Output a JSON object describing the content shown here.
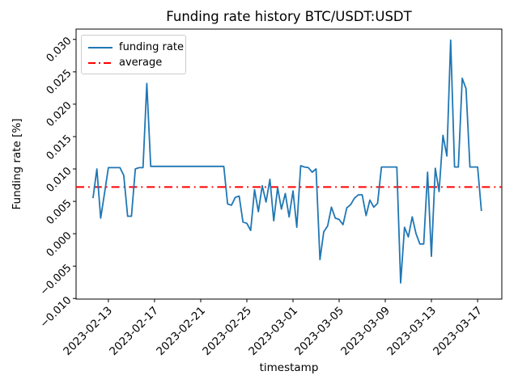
{
  "chart_data": {
    "type": "line",
    "title": "Funding rate history BTC/USDT:USDT",
    "xlabel": "timestamp",
    "ylabel": "Funding rate [%]",
    "legend_position": "upper left",
    "grid": false,
    "colors": {
      "funding_rate_line": "#1f77b4",
      "average_line": "#ff0000"
    },
    "average_value": 0.0072,
    "x_ticks": [
      "2023-02-13",
      "2023-02-17",
      "2023-02-21",
      "2023-02-25",
      "2023-03-01",
      "2023-03-05",
      "2023-03-09",
      "2023-03-13",
      "2023-03-17"
    ],
    "y_tick_values": [
      0.03,
      0.025,
      0.02,
      0.015,
      0.01,
      0.005,
      0.0,
      -0.005,
      -0.01
    ],
    "y_tick_labels": [
      "0.030",
      "0.025",
      "0.020",
      "0.015",
      "0.010",
      "0.005",
      "0.000",
      "−0.005",
      "−0.010"
    ],
    "ylim": [
      -0.0101,
      0.0316
    ],
    "xlim_days_from_2023_02_13": [
      -2.8,
      34.1
    ],
    "legend": [
      {
        "label": "funding rate",
        "color": "#1f77b4",
        "style": "solid"
      },
      {
        "label": "average",
        "color": "#ff0000",
        "style": "dashdot"
      }
    ],
    "timestamps": [
      "2023-02-11T16:00",
      "2023-02-12T00:00",
      "2023-02-12T08:00",
      "2023-02-12T16:00",
      "2023-02-13T00:00",
      "2023-02-13T08:00",
      "2023-02-13T16:00",
      "2023-02-14T00:00",
      "2023-02-14T08:00",
      "2023-02-14T16:00",
      "2023-02-15T00:00",
      "2023-02-15T08:00",
      "2023-02-15T16:00",
      "2023-02-16T00:00",
      "2023-02-16T08:00",
      "2023-02-16T16:00",
      "2023-02-17T00:00",
      "2023-02-17T08:00",
      "2023-02-17T16:00",
      "2023-02-18T00:00",
      "2023-02-18T08:00",
      "2023-02-18T16:00",
      "2023-02-19T00:00",
      "2023-02-19T08:00",
      "2023-02-19T16:00",
      "2023-02-20T00:00",
      "2023-02-20T08:00",
      "2023-02-20T16:00",
      "2023-02-21T00:00",
      "2023-02-21T08:00",
      "2023-02-21T16:00",
      "2023-02-22T00:00",
      "2023-02-22T08:00",
      "2023-02-22T16:00",
      "2023-02-23T00:00",
      "2023-02-23T08:00",
      "2023-02-23T16:00",
      "2023-02-24T00:00",
      "2023-02-24T08:00",
      "2023-02-24T16:00",
      "2023-02-25T00:00",
      "2023-02-25T08:00",
      "2023-02-25T16:00",
      "2023-02-26T00:00",
      "2023-02-26T08:00",
      "2023-02-26T16:00",
      "2023-02-27T00:00",
      "2023-02-27T08:00",
      "2023-02-27T16:00",
      "2023-02-28T00:00",
      "2023-02-28T08:00",
      "2023-02-28T16:00",
      "2023-03-01T00:00",
      "2023-03-01T08:00",
      "2023-03-01T16:00",
      "2023-03-02T00:00",
      "2023-03-02T08:00",
      "2023-03-02T16:00",
      "2023-03-03T00:00",
      "2023-03-03T08:00",
      "2023-03-03T16:00",
      "2023-03-04T00:00",
      "2023-03-04T08:00",
      "2023-03-04T16:00",
      "2023-03-05T00:00",
      "2023-03-05T08:00",
      "2023-03-05T16:00",
      "2023-03-06T00:00",
      "2023-03-06T08:00",
      "2023-03-06T16:00",
      "2023-03-07T00:00",
      "2023-03-07T08:00",
      "2023-03-07T16:00",
      "2023-03-08T00:00",
      "2023-03-08T08:00",
      "2023-03-08T16:00",
      "2023-03-09T00:00",
      "2023-03-09T08:00",
      "2023-03-09T16:00",
      "2023-03-10T00:00",
      "2023-03-10T08:00",
      "2023-03-10T16:00",
      "2023-03-11T00:00",
      "2023-03-11T08:00",
      "2023-03-11T16:00",
      "2023-03-12T00:00",
      "2023-03-12T08:00",
      "2023-03-12T16:00",
      "2023-03-13T00:00",
      "2023-03-13T08:00",
      "2023-03-13T16:00",
      "2023-03-14T00:00",
      "2023-03-14T08:00",
      "2023-03-14T16:00",
      "2023-03-15T00:00",
      "2023-03-15T08:00",
      "2023-03-15T16:00",
      "2023-03-16T00:00",
      "2023-03-16T08:00",
      "2023-03-16T16:00",
      "2023-03-17T00:00",
      "2023-03-17T08:00"
    ],
    "series": [
      {
        "name": "funding rate",
        "values": [
          0.0055,
          0.01,
          0.0024,
          0.0063,
          0.0102,
          0.0102,
          0.0102,
          0.0102,
          0.009,
          0.0027,
          0.0027,
          0.01,
          0.0102,
          0.0102,
          0.0232,
          0.0104,
          0.0104,
          0.0104,
          0.0104,
          0.0104,
          0.0104,
          0.0104,
          0.0104,
          0.0104,
          0.0104,
          0.0104,
          0.0104,
          0.0104,
          0.0104,
          0.0104,
          0.0104,
          0.0104,
          0.0104,
          0.0104,
          0.0104,
          0.0046,
          0.0044,
          0.0056,
          0.0058,
          0.0018,
          0.0016,
          0.0005,
          0.0068,
          0.0034,
          0.0074,
          0.0049,
          0.0084,
          0.002,
          0.0071,
          0.0038,
          0.0062,
          0.0026,
          0.0066,
          0.001,
          0.0105,
          0.0103,
          0.0102,
          0.0095,
          0.01,
          -0.004,
          0.0003,
          0.0012,
          0.0041,
          0.0024,
          0.0022,
          0.0014,
          0.004,
          0.0045,
          0.0055,
          0.006,
          0.006,
          0.0028,
          0.0052,
          0.0041,
          0.0047,
          0.0103,
          0.0103,
          0.0103,
          0.0103,
          0.0103,
          -0.0076,
          0.001,
          -0.0005,
          0.0026,
          0.0,
          -0.0016,
          -0.0016,
          0.0095,
          -0.0035,
          0.0101,
          0.0065,
          0.0152,
          0.012,
          0.0299,
          0.0103,
          0.0103,
          0.024,
          0.0224,
          0.0103,
          0.0103,
          0.0103,
          0.0035
        ]
      }
    ]
  }
}
